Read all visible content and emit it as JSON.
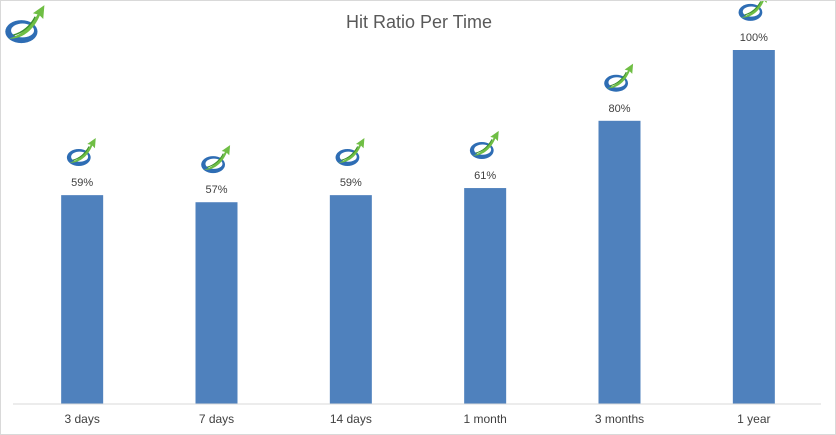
{
  "chart_data": {
    "type": "bar",
    "title": "Hit Ratio Per Time",
    "categories": [
      "3 days",
      "7 days",
      "14 days",
      "1 month",
      "3 months",
      "1 year"
    ],
    "values": [
      59,
      57,
      59,
      61,
      80,
      100
    ],
    "value_labels": [
      "59%",
      "57%",
      "59%",
      "61%",
      "80%",
      "100%"
    ],
    "ylim": [
      0,
      100
    ],
    "xlabel": "",
    "ylabel": "",
    "grid": false,
    "legend": "none",
    "bar_color": "#4f81bd",
    "marker_icon": "growth-arrow-logo-icon"
  },
  "colors": {
    "logo_blue": "#2e6db4",
    "logo_green": "#6fbe44"
  }
}
